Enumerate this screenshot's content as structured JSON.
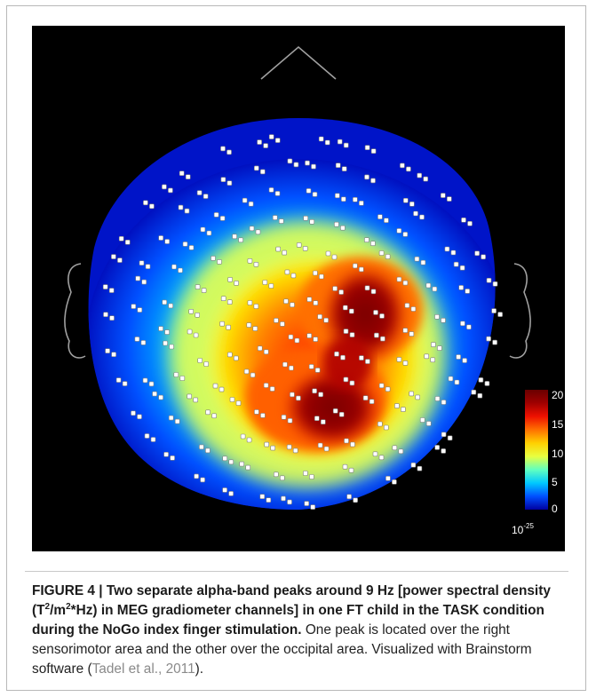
{
  "figure": {
    "label": "FIGURE 4 | ",
    "title_part1": "Two separate alpha-band peaks around 9 Hz [power spectral density (T",
    "title_sup1": "2",
    "title_part2": "/m",
    "title_sup2": "2",
    "title_part3": "*Hz) in MEG gradiometer channels] in one FT child in the TASK condition during the NoGo index finger stimulation.",
    "body": " One peak is located over the right sensorimotor area and the other over the occipital area. Visualized with Brainstorm software (",
    "citation": "Tadel et al., 2011",
    "body_end": ")."
  },
  "colorbar": {
    "ticks": [
      "20",
      "15",
      "10",
      "5",
      "0"
    ],
    "scale_base": "10",
    "scale_exp": "-25",
    "colors": [
      "#0000a0",
      "#0050ff",
      "#00c8ff",
      "#60ffc0",
      "#e8ff40",
      "#ffd000",
      "#ff7000",
      "#ee1000",
      "#a00000",
      "#6a0000"
    ]
  },
  "topomap": {
    "background": "#000000",
    "head_outline_color": "#a0a0a0"
  }
}
